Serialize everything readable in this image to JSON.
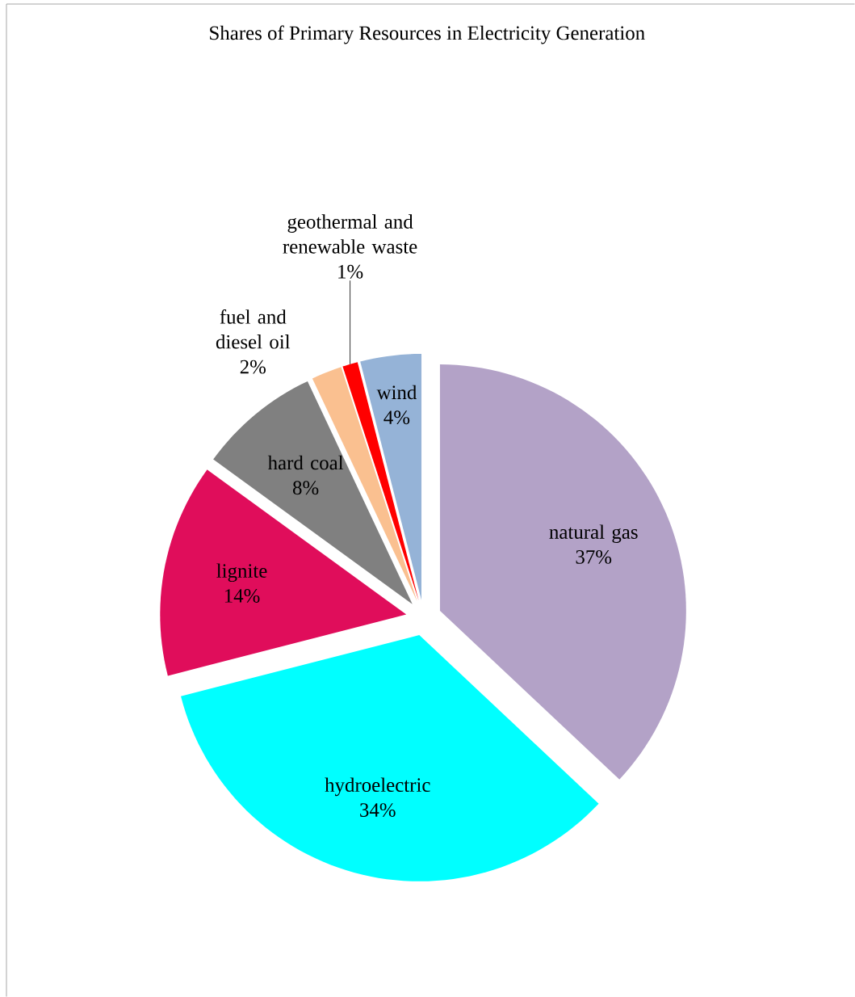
{
  "chart_data": {
    "type": "pie",
    "title": "Shares of Primary Resources in Electricity Generation",
    "categories": [
      "natural gas",
      "hydroelectric",
      "lignite",
      "hard coal",
      "fuel and diesel oil",
      "geothermal and renewable waste",
      "wind"
    ],
    "values": [
      37,
      34,
      14,
      8,
      2,
      1,
      4
    ],
    "value_labels": [
      "37%",
      "34%",
      "14%",
      "8%",
      "2%",
      "1%",
      "4%"
    ],
    "colors": [
      "#b3a2c7",
      "#00ffff",
      "#e00d5b",
      "#808080",
      "#fac090",
      "#ff0000",
      "#95b3d7"
    ]
  }
}
